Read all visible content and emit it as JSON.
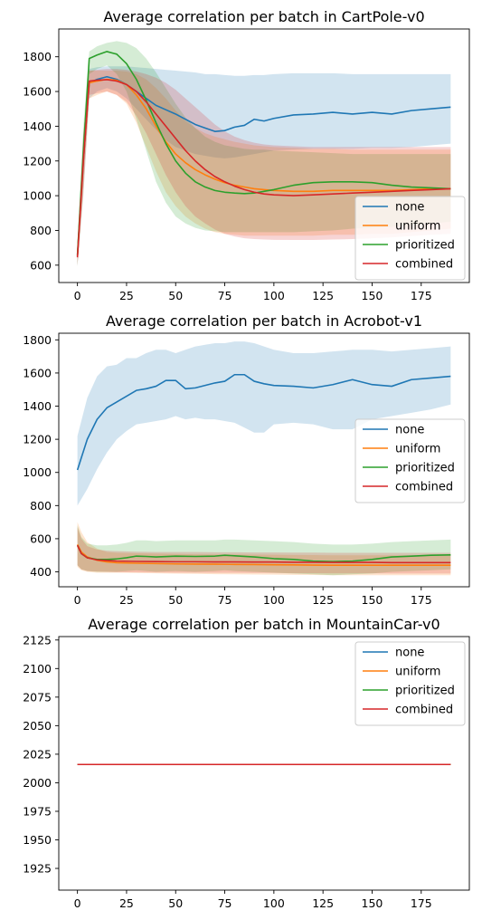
{
  "chart_data": [
    {
      "type": "line",
      "title": "Average correlation per batch in CartPole-v0",
      "xlabel": "",
      "ylabel": "",
      "xlim": [
        -9.5,
        199.5
      ],
      "ylim": [
        500,
        1960
      ],
      "xticks": [
        0,
        25,
        50,
        75,
        100,
        125,
        150,
        175
      ],
      "yticks": [
        600,
        800,
        1000,
        1200,
        1400,
        1600,
        1800
      ],
      "grid": false,
      "legend_position": "lower right",
      "series": [
        {
          "name": "none",
          "color": "#1f77b4",
          "x": [
            0,
            3,
            6,
            10,
            15,
            20,
            25,
            30,
            35,
            40,
            45,
            50,
            55,
            60,
            65,
            70,
            75,
            80,
            85,
            90,
            95,
            100,
            110,
            120,
            130,
            140,
            150,
            160,
            170,
            180,
            190
          ],
          "y": [
            655,
            1200,
            1650,
            1670,
            1685,
            1670,
            1640,
            1600,
            1560,
            1520,
            1495,
            1470,
            1440,
            1410,
            1390,
            1370,
            1375,
            1395,
            1405,
            1440,
            1430,
            1445,
            1465,
            1470,
            1480,
            1470,
            1480,
            1470,
            1490,
            1500,
            1510
          ],
          "band_upper": [
            720,
            1350,
            1730,
            1740,
            1745,
            1745,
            1745,
            1740,
            1735,
            1730,
            1725,
            1720,
            1715,
            1710,
            1700,
            1700,
            1695,
            1690,
            1690,
            1695,
            1695,
            1700,
            1705,
            1705,
            1705,
            1700,
            1700,
            1700,
            1700,
            1700,
            1700
          ],
          "band_lower": [
            600,
            1000,
            1560,
            1600,
            1620,
            1600,
            1560,
            1500,
            1440,
            1380,
            1320,
            1280,
            1260,
            1240,
            1230,
            1220,
            1215,
            1220,
            1230,
            1240,
            1250,
            1260,
            1265,
            1270,
            1270,
            1270,
            1275,
            1275,
            1280,
            1290,
            1300
          ]
        },
        {
          "name": "uniform",
          "color": "#ff7f0e",
          "x": [
            0,
            3,
            6,
            10,
            15,
            20,
            25,
            30,
            35,
            40,
            45,
            50,
            55,
            60,
            65,
            70,
            75,
            80,
            85,
            90,
            95,
            100,
            110,
            120,
            130,
            140,
            150,
            160,
            170,
            180,
            190
          ],
          "y": [
            650,
            1200,
            1650,
            1660,
            1670,
            1665,
            1640,
            1580,
            1500,
            1400,
            1310,
            1240,
            1190,
            1150,
            1120,
            1095,
            1075,
            1060,
            1050,
            1040,
            1035,
            1030,
            1025,
            1025,
            1030,
            1030,
            1030,
            1030,
            1035,
            1040,
            1040
          ],
          "band_upper": [
            720,
            1350,
            1720,
            1720,
            1720,
            1720,
            1715,
            1700,
            1670,
            1620,
            1560,
            1490,
            1430,
            1390,
            1360,
            1340,
            1325,
            1310,
            1300,
            1290,
            1285,
            1280,
            1275,
            1270,
            1270,
            1265,
            1265,
            1265,
            1265,
            1265,
            1265
          ],
          "band_lower": [
            600,
            1000,
            1560,
            1580,
            1600,
            1580,
            1530,
            1420,
            1280,
            1140,
            1020,
            940,
            880,
            840,
            810,
            790,
            780,
            775,
            770,
            770,
            770,
            770,
            770,
            770,
            775,
            775,
            780,
            780,
            790,
            800,
            810
          ]
        },
        {
          "name": "prioritized",
          "color": "#2ca02c",
          "x": [
            0,
            3,
            6,
            10,
            15,
            20,
            25,
            30,
            35,
            40,
            45,
            50,
            55,
            60,
            65,
            70,
            75,
            80,
            85,
            90,
            95,
            100,
            110,
            120,
            130,
            140,
            150,
            160,
            170,
            180,
            190
          ],
          "y": [
            660,
            1250,
            1790,
            1810,
            1830,
            1815,
            1760,
            1670,
            1550,
            1420,
            1300,
            1200,
            1130,
            1080,
            1050,
            1030,
            1020,
            1015,
            1012,
            1015,
            1025,
            1035,
            1060,
            1075,
            1080,
            1080,
            1075,
            1060,
            1050,
            1045,
            1040
          ],
          "band_upper": [
            730,
            1400,
            1830,
            1860,
            1880,
            1890,
            1880,
            1850,
            1790,
            1710,
            1620,
            1530,
            1450,
            1390,
            1340,
            1310,
            1290,
            1280,
            1270,
            1265,
            1265,
            1260,
            1255,
            1250,
            1245,
            1240,
            1240,
            1240,
            1240,
            1240,
            1240
          ],
          "band_lower": [
            590,
            1100,
            1700,
            1730,
            1750,
            1700,
            1600,
            1440,
            1260,
            1080,
            960,
            880,
            840,
            815,
            800,
            795,
            790,
            790,
            790,
            790,
            790,
            790,
            790,
            795,
            800,
            810,
            815,
            820,
            830,
            840,
            850
          ]
        },
        {
          "name": "combined",
          "color": "#d62728",
          "x": [
            0,
            3,
            6,
            10,
            15,
            20,
            25,
            30,
            35,
            40,
            45,
            50,
            55,
            60,
            65,
            70,
            75,
            80,
            85,
            90,
            95,
            100,
            110,
            120,
            130,
            140,
            150,
            160,
            170,
            180,
            190
          ],
          "y": [
            645,
            1200,
            1660,
            1665,
            1668,
            1660,
            1640,
            1600,
            1540,
            1470,
            1400,
            1330,
            1260,
            1200,
            1150,
            1110,
            1080,
            1055,
            1035,
            1020,
            1010,
            1005,
            1000,
            1005,
            1010,
            1015,
            1020,
            1025,
            1030,
            1035,
            1040
          ],
          "band_upper": [
            715,
            1350,
            1720,
            1725,
            1730,
            1730,
            1725,
            1715,
            1700,
            1680,
            1650,
            1610,
            1560,
            1510,
            1460,
            1410,
            1370,
            1340,
            1320,
            1305,
            1295,
            1290,
            1285,
            1280,
            1280,
            1280,
            1280,
            1280,
            1280,
            1280,
            1280
          ],
          "band_lower": [
            595,
            1050,
            1580,
            1590,
            1600,
            1580,
            1540,
            1460,
            1360,
            1240,
            1120,
            1020,
            940,
            880,
            840,
            805,
            780,
            765,
            755,
            750,
            748,
            746,
            745,
            745,
            748,
            750,
            755,
            760,
            768,
            775,
            780
          ]
        }
      ]
    },
    {
      "type": "line",
      "title": "Average correlation per batch in Acrobot-v1",
      "xlabel": "",
      "ylabel": "",
      "xlim": [
        -9.5,
        199.5
      ],
      "ylim": [
        310,
        1840
      ],
      "xticks": [
        0,
        25,
        50,
        75,
        100,
        125,
        150,
        175
      ],
      "yticks": [
        400,
        600,
        800,
        1000,
        1200,
        1400,
        1600,
        1800
      ],
      "grid": false,
      "legend_position": "center right",
      "series": [
        {
          "name": "none",
          "color": "#1f77b4",
          "x": [
            0,
            5,
            10,
            15,
            20,
            25,
            30,
            35,
            40,
            45,
            50,
            55,
            60,
            65,
            70,
            75,
            80,
            85,
            90,
            95,
            100,
            110,
            120,
            130,
            140,
            150,
            160,
            170,
            180,
            190
          ],
          "y": [
            1015,
            1200,
            1320,
            1390,
            1425,
            1460,
            1495,
            1505,
            1520,
            1555,
            1555,
            1505,
            1510,
            1525,
            1540,
            1550,
            1590,
            1590,
            1550,
            1535,
            1525,
            1520,
            1510,
            1530,
            1560,
            1530,
            1520,
            1560,
            1570,
            1580
          ],
          "band_upper": [
            1220,
            1450,
            1580,
            1640,
            1650,
            1690,
            1690,
            1720,
            1740,
            1740,
            1720,
            1740,
            1760,
            1770,
            1780,
            1780,
            1790,
            1790,
            1780,
            1760,
            1740,
            1720,
            1720,
            1730,
            1740,
            1740,
            1730,
            1740,
            1750,
            1760
          ],
          "band_lower": [
            800,
            900,
            1020,
            1120,
            1200,
            1250,
            1290,
            1300,
            1310,
            1320,
            1340,
            1320,
            1330,
            1320,
            1320,
            1310,
            1300,
            1270,
            1240,
            1240,
            1290,
            1300,
            1290,
            1260,
            1260,
            1320,
            1340,
            1360,
            1380,
            1410
          ]
        },
        {
          "name": "uniform",
          "color": "#ff7f0e",
          "x": [
            0,
            2,
            5,
            10,
            15,
            20,
            30,
            40,
            50,
            60,
            70,
            80,
            90,
            100,
            110,
            120,
            130,
            140,
            150,
            160,
            170,
            180,
            190
          ],
          "y": [
            565,
            520,
            490,
            470,
            460,
            455,
            452,
            450,
            448,
            447,
            446,
            445,
            444,
            443,
            442,
            441,
            440,
            440,
            440,
            440,
            440,
            440,
            440
          ],
          "band_upper": [
            700,
            640,
            580,
            540,
            520,
            515,
            512,
            510,
            508,
            506,
            505,
            505,
            504,
            503,
            502,
            501,
            500,
            500,
            500,
            500,
            500,
            500,
            500
          ],
          "band_lower": [
            430,
            410,
            400,
            395,
            395,
            395,
            393,
            391,
            389,
            388,
            386,
            385,
            384,
            383,
            382,
            381,
            380,
            380,
            380,
            380,
            380,
            380,
            380
          ]
        },
        {
          "name": "prioritized",
          "color": "#2ca02c",
          "x": [
            0,
            2,
            5,
            10,
            15,
            20,
            25,
            30,
            35,
            40,
            50,
            60,
            70,
            75,
            80,
            90,
            100,
            110,
            120,
            130,
            140,
            150,
            160,
            170,
            180,
            190
          ],
          "y": [
            560,
            510,
            485,
            475,
            475,
            478,
            485,
            495,
            493,
            490,
            495,
            493,
            495,
            500,
            497,
            490,
            480,
            475,
            465,
            462,
            465,
            475,
            490,
            495,
            500,
            502
          ],
          "band_upper": [
            680,
            610,
            570,
            560,
            560,
            565,
            575,
            590,
            590,
            585,
            590,
            590,
            590,
            595,
            595,
            590,
            585,
            580,
            570,
            565,
            565,
            570,
            580,
            585,
            590,
            595
          ],
          "band_lower": [
            440,
            415,
            405,
            400,
            400,
            400,
            405,
            410,
            405,
            400,
            405,
            400,
            405,
            410,
            405,
            400,
            395,
            390,
            385,
            380,
            385,
            390,
            400,
            405,
            410,
            415
          ]
        },
        {
          "name": "combined",
          "color": "#d62728",
          "x": [
            0,
            2,
            5,
            10,
            15,
            20,
            30,
            40,
            50,
            60,
            70,
            80,
            90,
            100,
            110,
            120,
            130,
            140,
            150,
            160,
            170,
            180,
            190
          ],
          "y": [
            560,
            510,
            485,
            472,
            468,
            465,
            463,
            462,
            461,
            461,
            460,
            460,
            459,
            459,
            458,
            458,
            457,
            457,
            457,
            456,
            456,
            456,
            456
          ],
          "band_upper": [
            670,
            600,
            555,
            535,
            528,
            525,
            522,
            520,
            520,
            520,
            518,
            518,
            517,
            517,
            516,
            516,
            515,
            515,
            515,
            515,
            515,
            515,
            515
          ],
          "band_lower": [
            440,
            415,
            405,
            402,
            400,
            398,
            397,
            396,
            395,
            395,
            394,
            394,
            393,
            393,
            392,
            392,
            391,
            391,
            391,
            390,
            390,
            390,
            390
          ]
        }
      ]
    },
    {
      "type": "line",
      "title": "Average correlation per batch in MountainCar-v0",
      "xlabel": "",
      "ylabel": "",
      "xlim": [
        -9.5,
        199.5
      ],
      "ylim": [
        1906,
        2128
      ],
      "xticks": [
        0,
        25,
        50,
        75,
        100,
        125,
        150,
        175
      ],
      "yticks": [
        1925,
        1950,
        1975,
        2000,
        2025,
        2050,
        2075,
        2100,
        2125
      ],
      "grid": false,
      "legend_position": "upper right",
      "series": [
        {
          "name": "none",
          "color": "#1f77b4",
          "x": [
            0,
            190
          ],
          "y": [
            2016,
            2016
          ]
        },
        {
          "name": "uniform",
          "color": "#ff7f0e",
          "x": [
            0,
            190
          ],
          "y": [
            2016,
            2016
          ]
        },
        {
          "name": "prioritized",
          "color": "#2ca02c",
          "x": [
            0,
            190
          ],
          "y": [
            2016,
            2016
          ]
        },
        {
          "name": "combined",
          "color": "#d62728",
          "x": [
            0,
            190
          ],
          "y": [
            2016,
            2016
          ]
        }
      ]
    }
  ]
}
